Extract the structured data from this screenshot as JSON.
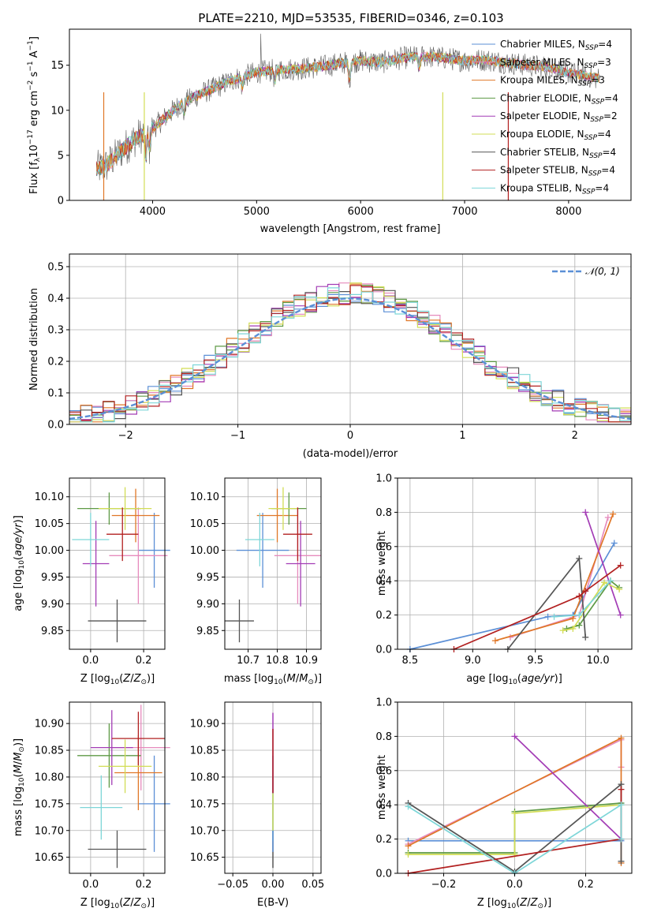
{
  "chart_data": [
    {
      "type": "line",
      "title": "PLATE=2210, MJD=53535, FIBERID=0346, z=0.103",
      "xlabel": "wavelength [Angstrom, rest frame]",
      "ylabel": "Flux [f_λ10^-17 erg cm^-2 s^-1 A^-1]",
      "xlim": [
        3200,
        8600
      ],
      "ylim": [
        0,
        19
      ],
      "xticks": [
        4000,
        5000,
        6000,
        7000,
        8000
      ],
      "yticks": [
        0,
        5,
        10,
        15
      ],
      "grid": false,
      "legend_position": "right",
      "spectrum_anchors": {
        "x": [
          3460,
          3550,
          3700,
          3850,
          3950,
          4100,
          4250,
          4400,
          4600,
          4800,
          5000,
          5200,
          5400,
          5600,
          5800,
          6000,
          6200,
          6400,
          6600,
          6800,
          7000,
          7200,
          7400,
          7600,
          7800,
          8000,
          8300
        ],
        "y": [
          3.5,
          3.8,
          5.5,
          7,
          7.5,
          9,
          10.5,
          11.5,
          12.5,
          13.5,
          14.2,
          14.5,
          14.6,
          14.8,
          15.2,
          15.5,
          15.3,
          15.8,
          16,
          15.8,
          15.5,
          15.6,
          15.3,
          15,
          14.8,
          14.2,
          13.5
        ]
      },
      "series": [
        {
          "name": "Chabrier MILES, N_SSP=4",
          "name_main": "Chabrier MILES, N",
          "name_sub": "SSP",
          "name_tail": "=4",
          "color": "#5b8fd6"
        },
        {
          "name": "Salpeter MILES, N_SSP=3",
          "name_main": "Salpeter MILES, N",
          "name_sub": "SSP",
          "name_tail": "=3",
          "color": "#e68bbd"
        },
        {
          "name": "Kroupa MILES, N_SSP=3",
          "name_main": "Kroupa MILES, N",
          "name_sub": "SSP",
          "name_tail": "=3",
          "color": "#e07727"
        },
        {
          "name": "Chabrier ELODIE, N_SSP=4",
          "name_main": "Chabrier ELODIE, N",
          "name_sub": "SSP",
          "name_tail": "=4",
          "color": "#5e9a45"
        },
        {
          "name": "Salpeter ELODIE, N_SSP=2",
          "name_main": "Salpeter ELODIE, N",
          "name_sub": "SSP",
          "name_tail": "=2",
          "color": "#a33cb5"
        },
        {
          "name": "Kroupa ELODIE, N_SSP=4",
          "name_main": "Kroupa ELODIE, N",
          "name_sub": "SSP",
          "name_tail": "=4",
          "color": "#d2dd55"
        },
        {
          "name": "Chabrier STELIB, N_SSP=4",
          "name_main": "Chabrier STELIB, N",
          "name_sub": "SSP",
          "name_tail": "=4",
          "color": "#555555"
        },
        {
          "name": "Salpeter STELIB, N_SSP=4",
          "name_main": "Salpeter STELIB, N",
          "name_sub": "SSP",
          "name_tail": "=4",
          "color": "#b22020"
        },
        {
          "name": "Kroupa STELIB, N_SSP=4",
          "name_main": "Kroupa STELIB, N",
          "name_sub": "SSP",
          "name_tail": "=4",
          "color": "#7dd6d8"
        }
      ]
    },
    {
      "type": "area",
      "xlabel": "(data-model)/error",
      "ylabel": "Normed distribution",
      "xlim": [
        -2.5,
        2.5
      ],
      "ylim": [
        0,
        0.54
      ],
      "xticks": [
        -2,
        -1,
        0,
        1,
        2
      ],
      "yticks": [
        0.0,
        0.1,
        0.2,
        0.3,
        0.4,
        0.5
      ],
      "grid": true,
      "legend": "𝒩(0, 1)",
      "legend_position": "top-right",
      "bin_width": 0.1,
      "reference_curve": "normal(0,1)"
    },
    {
      "type": "scatter",
      "xlabel": "Z [log10(Z/Z⊙)]",
      "ylabel": "age [log10(age/yr)]",
      "xlim": [
        -0.08,
        0.28
      ],
      "ylim": [
        9.815,
        10.135
      ],
      "xticks": [
        0.0,
        0.2
      ],
      "yticks": [
        9.85,
        9.9,
        9.95,
        10.0,
        10.05,
        10.1
      ],
      "grid": true,
      "points": [
        {
          "x": 0.24,
          "y": 10.0,
          "xerr": 0.06,
          "yerr": 0.07,
          "color": "#5b8fd6"
        },
        {
          "x": 0.18,
          "y": 9.99,
          "xerr": 0.11,
          "yerr": 0.09,
          "color": "#e68bbd"
        },
        {
          "x": 0.17,
          "y": 10.065,
          "xerr": 0.09,
          "yerr": 0.05,
          "color": "#e07727"
        },
        {
          "x": 0.07,
          "y": 10.078,
          "xerr": 0.12,
          "yerr": 0.03,
          "color": "#5e9a45"
        },
        {
          "x": 0.02,
          "y": 9.975,
          "xerr": 0.05,
          "yerr": 0.08,
          "color": "#a33cb5"
        },
        {
          "x": 0.13,
          "y": 10.078,
          "xerr": 0.1,
          "yerr": 0.04,
          "color": "#d2dd55"
        },
        {
          "x": 0.1,
          "y": 9.868,
          "xerr": 0.11,
          "yerr": 0.04,
          "color": "#555555"
        },
        {
          "x": 0.12,
          "y": 10.03,
          "xerr": 0.06,
          "yerr": 0.05,
          "color": "#b22020"
        },
        {
          "x": 0.0,
          "y": 10.02,
          "xerr": 0.07,
          "yerr": 0.05,
          "color": "#7dd6d8"
        }
      ]
    },
    {
      "type": "scatter",
      "xlabel": "mass [log10(M/M⊙)]",
      "ylabel": "",
      "xlim": [
        10.62,
        10.95
      ],
      "ylim": [
        9.815,
        10.135
      ],
      "xticks": [
        10.7,
        10.8,
        10.9
      ],
      "yticks": [
        9.85,
        9.9,
        9.95,
        10.0,
        10.05,
        10.1
      ],
      "grid": true,
      "points": [
        {
          "x": 10.75,
          "y": 10.0,
          "xerr": 0.09,
          "yerr": 0.07,
          "color": "#5b8fd6"
        },
        {
          "x": 10.87,
          "y": 9.99,
          "xerr": 0.08,
          "yerr": 0.09,
          "color": "#e68bbd"
        },
        {
          "x": 10.8,
          "y": 10.065,
          "xerr": 0.07,
          "yerr": 0.05,
          "color": "#e07727"
        },
        {
          "x": 10.84,
          "y": 10.078,
          "xerr": 0.06,
          "yerr": 0.03,
          "color": "#5e9a45"
        },
        {
          "x": 10.88,
          "y": 9.975,
          "xerr": 0.05,
          "yerr": 0.08,
          "color": "#a33cb5"
        },
        {
          "x": 10.82,
          "y": 10.078,
          "xerr": 0.05,
          "yerr": 0.04,
          "color": "#d2dd55"
        },
        {
          "x": 10.67,
          "y": 9.868,
          "xerr": 0.05,
          "yerr": 0.04,
          "color": "#555555"
        },
        {
          "x": 10.87,
          "y": 10.03,
          "xerr": 0.05,
          "yerr": 0.05,
          "color": "#b22020"
        },
        {
          "x": 10.74,
          "y": 10.02,
          "xerr": 0.05,
          "yerr": 0.05,
          "color": "#7dd6d8"
        }
      ]
    },
    {
      "type": "line",
      "xlabel": "age [log10(age/yr)]",
      "ylabel": "mass weight",
      "xlim": [
        8.4,
        10.27
      ],
      "ylim": [
        0,
        1
      ],
      "xticks": [
        8.5,
        9.0,
        9.5,
        10.0
      ],
      "yticks": [
        0.0,
        0.2,
        0.4,
        0.6,
        0.8,
        1.0
      ],
      "grid": true,
      "series": [
        {
          "color": "#5b8fd6",
          "x": [
            8.5,
            9.6,
            9.8,
            10.13
          ],
          "y": [
            0.0,
            0.19,
            0.2,
            0.62
          ]
        },
        {
          "color": "#e68bbd",
          "x": [
            9.3,
            9.85,
            10.08
          ],
          "y": [
            0.07,
            0.2,
            0.77
          ]
        },
        {
          "color": "#e07727",
          "x": [
            9.18,
            9.8,
            10.12
          ],
          "y": [
            0.05,
            0.18,
            0.79
          ]
        },
        {
          "color": "#5e9a45",
          "x": [
            9.75,
            9.85,
            10.1,
            10.17
          ],
          "y": [
            0.12,
            0.14,
            0.4,
            0.36
          ]
        },
        {
          "color": "#a33cb5",
          "x": [
            9.9,
            10.18
          ],
          "y": [
            0.8,
            0.2
          ]
        },
        {
          "color": "#d2dd55",
          "x": [
            9.72,
            9.8,
            10.05,
            10.17
          ],
          "y": [
            0.11,
            0.12,
            0.39,
            0.35
          ]
        },
        {
          "color": "#555555",
          "x": [
            9.28,
            9.85,
            9.9
          ],
          "y": [
            0.0,
            0.53,
            0.07
          ]
        },
        {
          "color": "#b22020",
          "x": [
            8.85,
            9.85,
            9.9,
            10.18
          ],
          "y": [
            0.0,
            0.31,
            0.34,
            0.49
          ]
        },
        {
          "color": "#7dd6d8",
          "x": [
            9.65,
            9.85,
            10.1
          ],
          "y": [
            0.19,
            0.2,
            0.4
          ]
        }
      ]
    },
    {
      "type": "scatter",
      "xlabel": "Z [log10(Z/Z⊙)]",
      "ylabel": "mass [log10(M/M⊙)]",
      "xlim": [
        -0.08,
        0.28
      ],
      "ylim": [
        10.62,
        10.94
      ],
      "xticks": [
        0.0,
        0.2
      ],
      "yticks": [
        10.65,
        10.7,
        10.75,
        10.8,
        10.85,
        10.9
      ],
      "grid": true,
      "points": [
        {
          "x": 0.24,
          "y": 10.75,
          "xerr": 0.06,
          "yerr": 0.09,
          "color": "#5b8fd6"
        },
        {
          "x": 0.19,
          "y": 10.855,
          "xerr": 0.11,
          "yerr": 0.08,
          "color": "#e68bbd"
        },
        {
          "x": 0.18,
          "y": 10.808,
          "xerr": 0.09,
          "yerr": 0.07,
          "color": "#e07727"
        },
        {
          "x": 0.07,
          "y": 10.84,
          "xerr": 0.12,
          "yerr": 0.06,
          "color": "#5e9a45"
        },
        {
          "x": 0.08,
          "y": 10.855,
          "xerr": 0.08,
          "yerr": 0.07,
          "color": "#a33cb5"
        },
        {
          "x": 0.13,
          "y": 10.82,
          "xerr": 0.1,
          "yerr": 0.05,
          "color": "#d2dd55"
        },
        {
          "x": 0.1,
          "y": 10.665,
          "xerr": 0.11,
          "yerr": 0.035,
          "color": "#555555"
        },
        {
          "x": 0.18,
          "y": 10.872,
          "xerr": 0.1,
          "yerr": 0.05,
          "color": "#b22020"
        },
        {
          "x": 0.04,
          "y": 10.743,
          "xerr": 0.08,
          "yerr": 0.06,
          "color": "#7dd6d8"
        }
      ]
    },
    {
      "type": "scatter",
      "xlabel": "E(B-V)",
      "ylabel": "",
      "xlim": [
        -0.06,
        0.06
      ],
      "ylim": [
        10.62,
        10.94
      ],
      "xticks": [
        -0.05,
        0.0,
        0.05
      ],
      "yticks": [
        10.65,
        10.7,
        10.75,
        10.8,
        10.85,
        10.9
      ],
      "grid": true,
      "segments": [
        {
          "color": "#555555",
          "x": 0.0,
          "y0": 10.63,
          "y1": 10.7
        },
        {
          "color": "#7dd6d8",
          "x": 0.0,
          "y0": 10.68,
          "y1": 10.8
        },
        {
          "color": "#5b8fd6",
          "x": 0.0,
          "y0": 10.66,
          "y1": 10.84
        },
        {
          "color": "#d2dd55",
          "x": 0.0,
          "y0": 10.7,
          "y1": 10.77
        },
        {
          "color": "#a33cb5",
          "x": 0.0,
          "y0": 10.77,
          "y1": 10.92
        },
        {
          "color": "#b22020",
          "x": 0.0,
          "y0": 10.77,
          "y1": 10.89
        }
      ]
    },
    {
      "type": "line",
      "xlabel": "Z [log10(Z/Z⊙)]",
      "ylabel": "mass weight",
      "xlim": [
        -0.33,
        0.33
      ],
      "ylim": [
        0,
        1
      ],
      "xticks": [
        -0.2,
        0.0,
        0.2
      ],
      "yticks": [
        0.0,
        0.2,
        0.4,
        0.6,
        0.8,
        1.0
      ],
      "grid": true,
      "series": [
        {
          "color": "#5b8fd6",
          "x": [
            -0.3,
            0.0,
            0.3,
            0.3
          ],
          "y": [
            0.19,
            0.19,
            0.19,
            0.41
          ]
        },
        {
          "color": "#e68bbd",
          "x": [
            -0.3,
            0.3,
            0.3
          ],
          "y": [
            0.17,
            0.78,
            0.62
          ]
        },
        {
          "color": "#e07727",
          "x": [
            -0.3,
            0.3,
            0.3
          ],
          "y": [
            0.16,
            0.79,
            0.06
          ]
        },
        {
          "color": "#5e9a45",
          "x": [
            -0.3,
            0.0,
            0.0,
            0.3
          ],
          "y": [
            0.12,
            0.12,
            0.36,
            0.41
          ]
        },
        {
          "color": "#a33cb5",
          "x": [
            0.0,
            0.3
          ],
          "y": [
            0.8,
            0.2
          ]
        },
        {
          "color": "#d2dd55",
          "x": [
            -0.3,
            0.0,
            0.0,
            0.3
          ],
          "y": [
            0.11,
            0.11,
            0.35,
            0.4
          ]
        },
        {
          "color": "#555555",
          "x": [
            -0.3,
            0.0,
            0.3,
            0.3
          ],
          "y": [
            0.41,
            0.01,
            0.52,
            0.07
          ]
        },
        {
          "color": "#b22020",
          "x": [
            -0.3,
            0.3,
            0.3
          ],
          "y": [
            0.0,
            0.2,
            0.49
          ]
        },
        {
          "color": "#7dd6d8",
          "x": [
            -0.3,
            0.0,
            0.3,
            0.3
          ],
          "y": [
            0.39,
            0.0,
            0.4,
            0.2
          ]
        }
      ]
    }
  ]
}
